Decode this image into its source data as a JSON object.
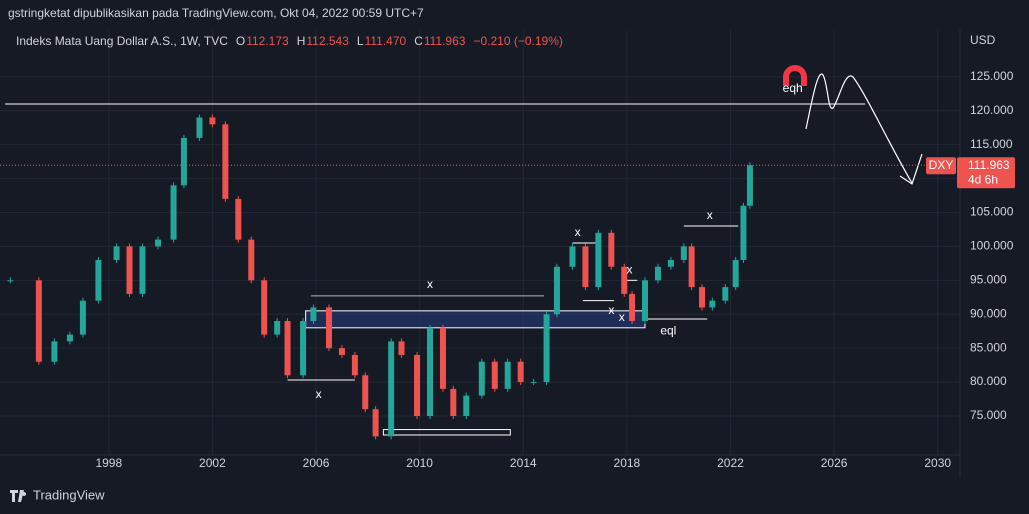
{
  "header": {
    "published": "gstringketat dipublikasikan pada TradingView.com, Okt 04, 2022 00:59 UTC+7",
    "brand": "TradingView"
  },
  "chart_data": {
    "type": "candlestick",
    "title": "Indeks Mata Uang Dollar A.S., 1W, TVC",
    "ohlc_legend": [
      {
        "key": "O",
        "text": "112.173"
      },
      {
        "key": "H",
        "text": "112.543"
      },
      {
        "key": "L",
        "text": "111.470"
      },
      {
        "key": "C",
        "text": "111.963"
      }
    ],
    "change": "−0.210 (−0.19%)",
    "currency": "USD",
    "symbol": "DXY",
    "price_label": "111.963",
    "countdown": "4d 6h",
    "up_color": "#26a69a",
    "down_color": "#ef5350",
    "x": [
      1994.2,
      1995.3,
      1995.9,
      1996.5,
      1997.0,
      1997.6,
      1998.3,
      1998.8,
      1999.3,
      1999.9,
      2000.5,
      2000.9,
      2001.5,
      2002.0,
      2002.5,
      2003.0,
      2003.5,
      2004.0,
      2004.5,
      2004.9,
      2005.5,
      2005.9,
      2006.5,
      2007.0,
      2007.5,
      2007.9,
      2008.3,
      2008.9,
      2009.3,
      2009.9,
      2010.4,
      2010.9,
      2011.3,
      2011.8,
      2012.4,
      2012.9,
      2013.4,
      2013.9,
      2014.4,
      2014.9,
      2015.3,
      2015.9,
      2016.4,
      2016.9,
      2017.4,
      2017.9,
      2018.2,
      2018.7,
      2019.2,
      2019.7,
      2020.2,
      2020.5,
      2020.9,
      2021.3,
      2021.8,
      2022.2,
      2022.5,
      2022.75
    ],
    "values": [
      95,
      83,
      86,
      87,
      92,
      98,
      100,
      93,
      100,
      101,
      109,
      116,
      119,
      118,
      107,
      101,
      95,
      87,
      89,
      81,
      89,
      91,
      85,
      84,
      81,
      76,
      72,
      86,
      84,
      75,
      88,
      79,
      75,
      78,
      83,
      79,
      83,
      80,
      80,
      90,
      97,
      100,
      94,
      102,
      97,
      93,
      89,
      95,
      97,
      98,
      100,
      94,
      91,
      92,
      94,
      98,
      106,
      111.963
    ],
    "xlim": [
      1993.8,
      2030.86
    ],
    "ylim": [
      69.25,
      131.9
    ],
    "xticks": [
      1998,
      2002,
      2006,
      2010,
      2014,
      2018,
      2022,
      2026,
      2030
    ],
    "yticks": [
      {
        "value": 75,
        "label": "75.000"
      },
      {
        "value": 80,
        "label": "80.000"
      },
      {
        "value": 85,
        "label": "85.000"
      },
      {
        "value": 90,
        "label": "90.000"
      },
      {
        "value": 95,
        "label": "95.000"
      },
      {
        "value": 100,
        "label": "100.000"
      },
      {
        "value": 105,
        "label": "105.000"
      },
      {
        "value": 110,
        "label": "110.000"
      },
      {
        "value": 115,
        "label": "115.000"
      },
      {
        "value": 120,
        "label": "120.000"
      },
      {
        "value": 125,
        "label": "125.000"
      }
    ],
    "zones": [
      {
        "x": [
          2005.6,
          2018.7
        ],
        "y": [
          88,
          90.5
        ]
      },
      {
        "x": [
          2008.6,
          2013.5
        ],
        "y": [
          72.2,
          73
        ]
      }
    ],
    "levels": [
      {
        "x": [
          1994.0,
          2027.2
        ],
        "y": 121
      },
      {
        "x": [
          2005.8,
          2014.8
        ],
        "y": 92.7
      },
      {
        "x": [
          2004.9,
          2007.5
        ],
        "y": 80.3
      },
      {
        "x": [
          2015.9,
          2016.9
        ],
        "y": 100.5
      },
      {
        "x": [
          2016.3,
          2017.5
        ],
        "y": 92
      },
      {
        "x": [
          2017.8,
          2018.4
        ],
        "y": 95
      },
      {
        "x": [
          2018.7,
          2021.1
        ],
        "y": 89.3
      },
      {
        "x": [
          2020.2,
          2022.3
        ],
        "y": 103
      }
    ],
    "annotations": [
      {
        "text": "eqh",
        "x": 2024.4,
        "y": 123.2
      },
      {
        "text": "x",
        "x": 2010.4,
        "y": 94.3
      },
      {
        "text": "x",
        "x": 2006.1,
        "y": 78.1
      },
      {
        "text": "x",
        "x": 2016.1,
        "y": 102
      },
      {
        "text": "x",
        "x": 2017.4,
        "y": 90.5
      },
      {
        "text": "x",
        "x": 2018.1,
        "y": 96.5
      },
      {
        "text": "x",
        "x": 2017.8,
        "y": 89.5
      },
      {
        "text": "eql",
        "x": 2019.6,
        "y": 87.5
      },
      {
        "text": "x",
        "x": 2021.2,
        "y": 104.5
      }
    ]
  }
}
